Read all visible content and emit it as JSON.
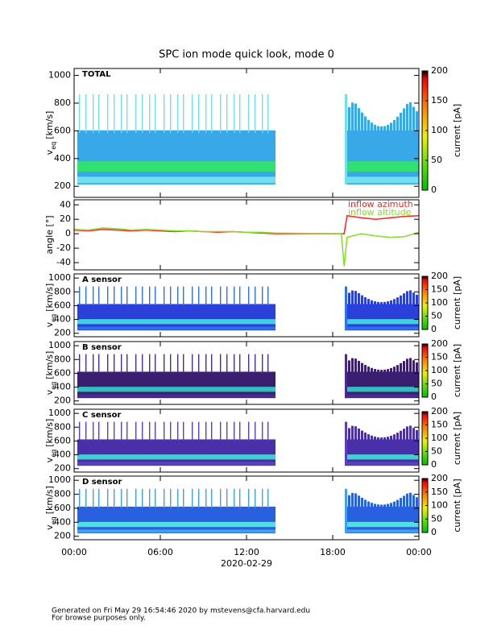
{
  "chart_data": [
    {
      "type": "heatmap",
      "title": "SPC ion mode quick look, mode 0",
      "panel_label": "TOTAL",
      "ylabel": {
        "main": "v",
        "sub": "eq",
        "unit": "[km/s]"
      },
      "ylim": [
        120,
        1050
      ],
      "yticks": [
        200,
        400,
        600,
        800,
        1000
      ],
      "xlim": [
        0,
        24
      ],
      "xticks": [
        0,
        6,
        12,
        18,
        24
      ],
      "colorbar": {
        "label": "current [pA]",
        "clim": [
          0,
          200
        ],
        "ticks": [
          0,
          50,
          100,
          150,
          200
        ]
      }
    },
    {
      "type": "line",
      "ylabel": "angle [°]",
      "ylim": [
        -50,
        47
      ],
      "yticks": [
        -40,
        -20,
        0,
        20,
        40
      ],
      "xlim": [
        0,
        24
      ],
      "xticks": [
        0,
        6,
        12,
        18,
        24
      ],
      "x": [
        0,
        1,
        2,
        3,
        4,
        5,
        6,
        7,
        8,
        9,
        10,
        11,
        12,
        13,
        14,
        18.6,
        18.8,
        19,
        20,
        21,
        22,
        23,
        24
      ],
      "series": [
        {
          "name": "inflow azimuth",
          "color": "#ff2020",
          "values": [
            5,
            4,
            6,
            5,
            4,
            5,
            4,
            3,
            4,
            3,
            2,
            3,
            2,
            1,
            0,
            0,
            0,
            25,
            22,
            20,
            22,
            24,
            25
          ]
        },
        {
          "name": "inflow altitude",
          "color": "#80e020",
          "values": [
            6,
            5,
            8,
            7,
            5,
            6,
            5,
            4,
            4,
            3,
            3,
            3,
            2,
            2,
            1,
            0,
            -45,
            -5,
            0,
            -3,
            -5,
            -4,
            2
          ]
        }
      ]
    },
    {
      "type": "heatmap",
      "panel_label": "A sensor",
      "ylabel": {
        "main": "v",
        "sub": "eq",
        "unit": "[km/s]"
      },
      "ylim": [
        150,
        1060
      ],
      "yticks": [
        200,
        400,
        600,
        800,
        1000
      ],
      "xlim": [
        0,
        24
      ],
      "xticks": [
        0,
        6,
        12,
        18,
        24
      ],
      "colorbar": {
        "label": "current [pA]",
        "clim": [
          0,
          200
        ],
        "ticks": [
          0,
          50,
          100,
          150,
          200
        ]
      }
    },
    {
      "type": "heatmap",
      "panel_label": "B sensor",
      "ylabel": {
        "main": "v",
        "sub": "eq",
        "unit": "[km/s]"
      },
      "ylim": [
        150,
        1060
      ],
      "yticks": [
        200,
        400,
        600,
        800,
        1000
      ],
      "xlim": [
        0,
        24
      ],
      "xticks": [
        0,
        6,
        12,
        18,
        24
      ],
      "colorbar": {
        "label": "current [pA]",
        "clim": [
          0,
          200
        ],
        "ticks": [
          0,
          50,
          100,
          150,
          200
        ]
      }
    },
    {
      "type": "heatmap",
      "panel_label": "C sensor",
      "ylabel": {
        "main": "v",
        "sub": "eq",
        "unit": "[km/s]"
      },
      "ylim": [
        150,
        1060
      ],
      "yticks": [
        200,
        400,
        600,
        800,
        1000
      ],
      "xlim": [
        0,
        24
      ],
      "xticks": [
        0,
        6,
        12,
        18,
        24
      ],
      "colorbar": {
        "label": "current [pA]",
        "clim": [
          0,
          200
        ],
        "ticks": [
          0,
          50,
          100,
          150,
          200
        ]
      }
    },
    {
      "type": "heatmap",
      "panel_label": "D sensor",
      "ylabel": {
        "main": "v",
        "sub": "eq",
        "unit": "[km/s]"
      },
      "ylim": [
        150,
        1060
      ],
      "yticks": [
        200,
        400,
        600,
        800,
        1000
      ],
      "xlim": [
        0,
        24
      ],
      "xticks": [
        {
          "value": 0,
          "label": "00:00"
        },
        {
          "value": 6,
          "label": "06:00"
        },
        {
          "value": 12,
          "label": "12:00"
        },
        {
          "value": 18,
          "label": "18:00"
        },
        {
          "value": 24,
          "label": "00:00"
        }
      ],
      "xlabel": "2020-02-29",
      "colorbar": {
        "label": "current [pA]",
        "clim": [
          0,
          200
        ],
        "ticks": [
          0,
          50,
          100,
          150,
          200
        ]
      }
    }
  ],
  "footer": [
    "Generated on Fri May 29 16:54:46 2020 by mstevens@cfa.harvard.edu",
    "For browse purposes only."
  ]
}
